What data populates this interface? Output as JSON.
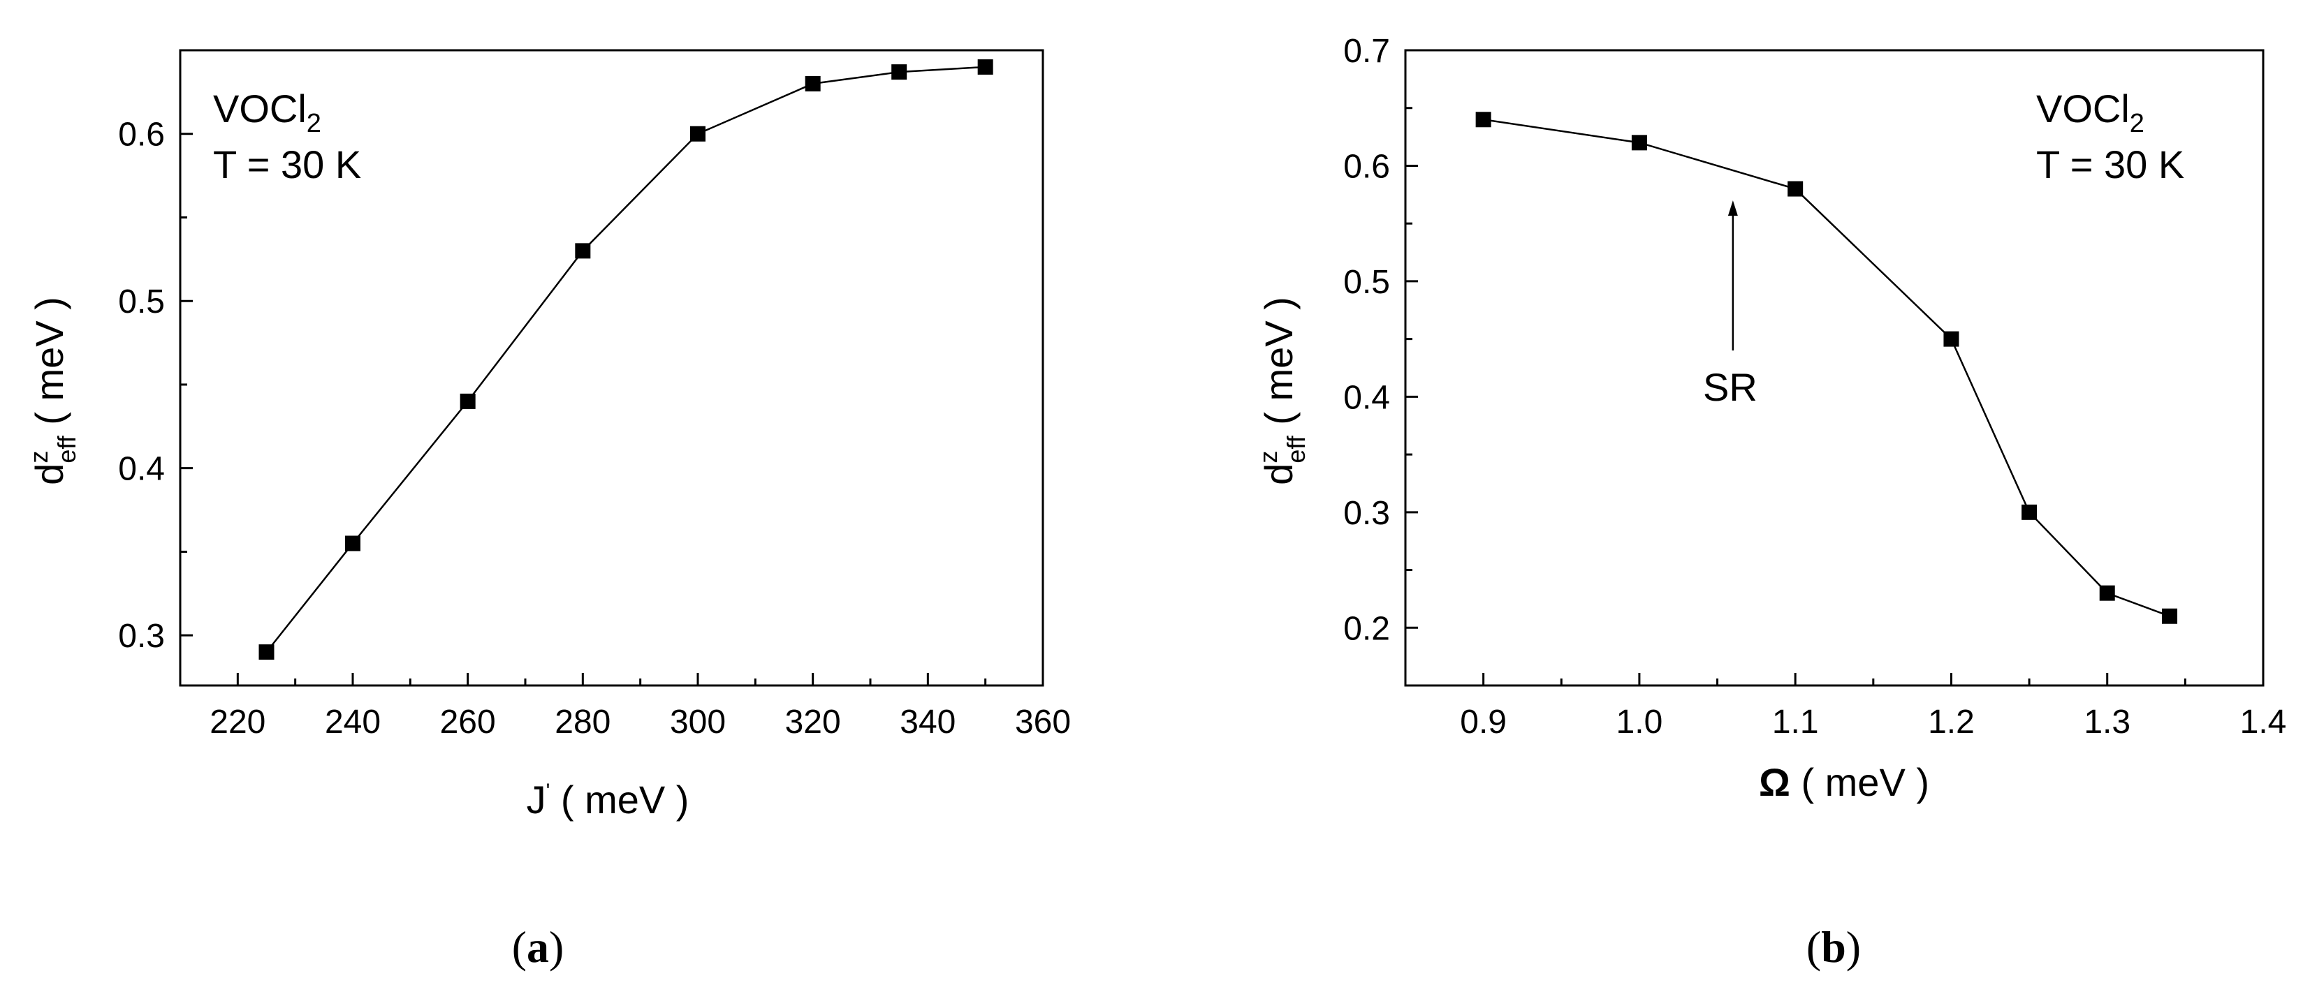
{
  "chart_data": [
    {
      "type": "line",
      "panel_label": "(a)",
      "annotation_lines": [
        "VOCl2",
        "T = 30 K"
      ],
      "xlabel": "J' ( meV )",
      "ylabel": "d^z_eff ( meV )",
      "xlim": [
        210,
        360
      ],
      "ylim": [
        0.27,
        0.65
      ],
      "xticks": [
        220,
        240,
        260,
        280,
        300,
        320,
        340,
        360
      ],
      "yticks": [
        0.3,
        0.4,
        0.5,
        0.6
      ],
      "x": [
        225,
        240,
        260,
        280,
        300,
        320,
        335,
        350
      ],
      "y": [
        0.29,
        0.355,
        0.44,
        0.53,
        0.6,
        0.63,
        0.637,
        0.64
      ],
      "grid": false
    },
    {
      "type": "line",
      "panel_label": "(b)",
      "annotation_lines": [
        "VOCl2",
        "T = 30 K"
      ],
      "arrow_label": "SR",
      "xlabel": "Ω ( meV )",
      "ylabel": "d^z_eff ( meV )",
      "xlim": [
        0.85,
        1.4
      ],
      "ylim": [
        0.15,
        0.7
      ],
      "xticks": [
        0.9,
        1.0,
        1.1,
        1.2,
        1.3,
        1.4
      ],
      "yticks": [
        0.2,
        0.3,
        0.4,
        0.5,
        0.6,
        0.7
      ],
      "x": [
        0.9,
        1.0,
        1.1,
        1.2,
        1.25,
        1.3,
        1.34
      ],
      "y": [
        0.64,
        0.62,
        0.58,
        0.45,
        0.3,
        0.23,
        0.21
      ],
      "arrow_x": 1.06,
      "arrow_y_from": 0.44,
      "arrow_y_to": 0.57,
      "grid": false
    }
  ]
}
